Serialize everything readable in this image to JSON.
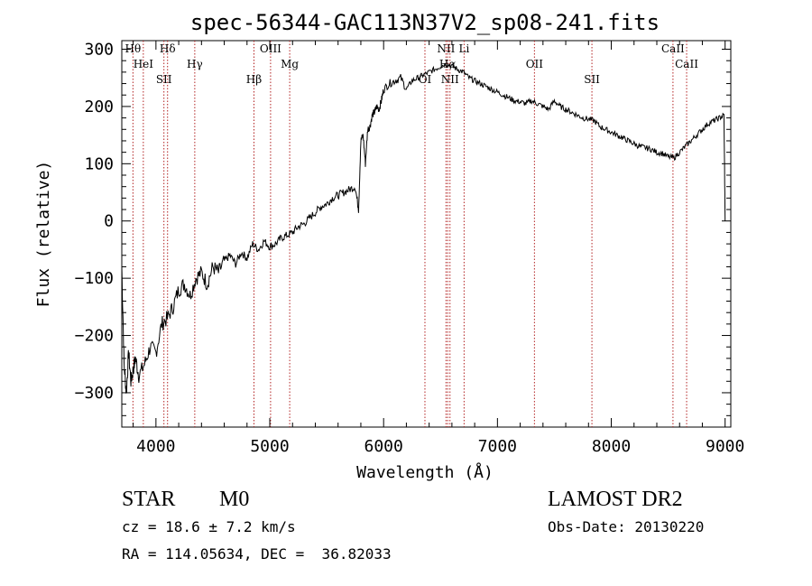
{
  "chart_data": {
    "type": "line",
    "title": "spec-56344-GAC113N37V2_sp08-241.fits",
    "xlabel": "Wavelength (Å)",
    "ylabel": "Flux (relative)",
    "xlim": [
      3700,
      9050
    ],
    "ylim": [
      -360,
      315
    ],
    "xticks": [
      4000,
      5000,
      6000,
      7000,
      8000,
      9000
    ],
    "yticks": [
      -300,
      -200,
      -100,
      0,
      100,
      200,
      300
    ],
    "grid": false,
    "series": [
      {
        "x": [
          3700,
          3720,
          3740,
          3760,
          3780,
          3800,
          3820,
          3850,
          3900,
          3950,
          4000,
          4050,
          4100,
          4150,
          4200,
          4250,
          4300,
          4350,
          4400,
          4450,
          4500,
          4550,
          4600,
          4650,
          4700,
          4750,
          4800,
          4850,
          4900,
          4950,
          5000,
          5050,
          5100,
          5150,
          5200,
          5250,
          5300,
          5350,
          5400,
          5450,
          5500,
          5550,
          5600,
          5650,
          5700,
          5750,
          5780,
          5800,
          5820,
          5840,
          5860,
          5880,
          5900,
          5920,
          5940,
          5960,
          5980,
          6000,
          6050,
          6100,
          6150,
          6200,
          6250,
          6300,
          6350,
          6400,
          6450,
          6500,
          6550,
          6600,
          6650,
          6700,
          6750,
          6800,
          6850,
          6900,
          6950,
          7000,
          7050,
          7100,
          7150,
          7200,
          7250,
          7300,
          7350,
          7400,
          7450,
          7500,
          7550,
          7600,
          7650,
          7700,
          7750,
          7800,
          7850,
          7900,
          7950,
          8000,
          8050,
          8100,
          8150,
          8200,
          8250,
          8300,
          8350,
          8400,
          8450,
          8500,
          8550,
          8600,
          8650,
          8700,
          8750,
          8800,
          8850,
          8900,
          8950,
          8990,
          9000
        ],
        "values": [
          -80,
          -250,
          -300,
          -230,
          -280,
          -260,
          -240,
          -270,
          -250,
          -220,
          -230,
          -180,
          -170,
          -150,
          -120,
          -110,
          -130,
          -100,
          -90,
          -110,
          -80,
          -90,
          -70,
          -60,
          -75,
          -55,
          -65,
          -40,
          -50,
          -35,
          -45,
          -40,
          -30,
          -25,
          -20,
          -10,
          -5,
          5,
          15,
          25,
          30,
          40,
          45,
          50,
          55,
          60,
          20,
          140,
          150,
          100,
          160,
          165,
          185,
          190,
          200,
          195,
          210,
          230,
          240,
          245,
          250,
          230,
          245,
          250,
          255,
          260,
          265,
          270,
          275,
          270,
          265,
          260,
          250,
          245,
          240,
          235,
          230,
          225,
          220,
          215,
          210,
          208,
          205,
          210,
          205,
          200,
          195,
          210,
          200,
          195,
          190,
          185,
          180,
          178,
          175,
          165,
          160,
          155,
          150,
          145,
          140,
          135,
          130,
          128,
          125,
          120,
          118,
          112,
          110,
          120,
          130,
          140,
          150,
          160,
          170,
          175,
          180,
          185,
          0
        ]
      }
    ],
    "lines": [
      {
        "label": "Hθ",
        "x": 3798
      },
      {
        "label": "HeI",
        "x": 3889
      },
      {
        "label": "SII",
        "x": 4070
      },
      {
        "label": "Hδ",
        "x": 4102
      },
      {
        "label": "Hγ",
        "x": 4341
      },
      {
        "label": "Hβ",
        "x": 4861
      },
      {
        "label": "OIII",
        "x": 5007
      },
      {
        "label": "Mg",
        "x": 5175
      },
      {
        "label": "OI",
        "x": 6363
      },
      {
        "label": "NII",
        "x": 6548
      },
      {
        "label": "Hα",
        "x": 6563
      },
      {
        "label": "NII",
        "x": 6583
      },
      {
        "label": "Li",
        "x": 6707
      },
      {
        "label": "OII",
        "x": 7325
      },
      {
        "label": "SII",
        "x": 7830
      },
      {
        "label": "CaII",
        "x": 8542
      },
      {
        "label": "CaII",
        "x": 8662
      }
    ]
  },
  "footer": {
    "object_type": "STAR",
    "subclass": "M0",
    "survey": "LAMOST DR2",
    "redshift": "cz = 18.6 ± 7.2 km/s",
    "obs_date": "Obs-Date: 20130220",
    "coords": "RA = 114.05634, DEC =  36.82033"
  }
}
